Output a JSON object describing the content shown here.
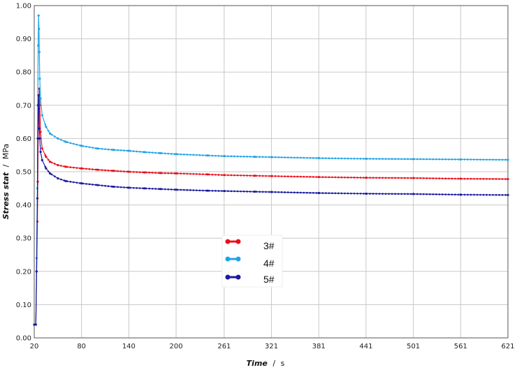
{
  "chart_data": {
    "type": "line",
    "xlabel_name": "Time",
    "xlabel_unit": "s",
    "ylabel_name": "Stress stat",
    "ylabel_unit": "MPa",
    "xlim": [
      20,
      621
    ],
    "ylim": [
      0,
      1.0
    ],
    "x_ticks": [
      20,
      80,
      140,
      200,
      261,
      321,
      381,
      441,
      501,
      561,
      621
    ],
    "y_ticks": [
      "0.00",
      "0.10",
      "0.20",
      "0.30",
      "0.40",
      "0.50",
      "0.60",
      "0.70",
      "0.80",
      "0.90",
      "1.00"
    ],
    "grid": true,
    "legend_placement": "center",
    "series": [
      {
        "name": "3#",
        "color": "#e8101c",
        "x": [
          20,
          22,
          23,
          24,
          24.5,
          25,
          25.5,
          26,
          26.5,
          27,
          28,
          30,
          35,
          40,
          50,
          60,
          80,
          100,
          120,
          140,
          160,
          180,
          200,
          240,
          261,
          300,
          321,
          381,
          441,
          501,
          561,
          621
        ],
        "y": [
          0.04,
          0.04,
          0.2,
          0.35,
          0.47,
          0.6,
          0.68,
          0.72,
          0.75,
          0.7,
          0.62,
          0.57,
          0.545,
          0.53,
          0.52,
          0.515,
          0.51,
          0.506,
          0.503,
          0.5,
          0.498,
          0.496,
          0.495,
          0.492,
          0.49,
          0.488,
          0.487,
          0.484,
          0.482,
          0.481,
          0.479,
          0.478
        ]
      },
      {
        "name": "4#",
        "color": "#1fa3e6",
        "x": [
          20,
          22,
          23,
          24,
          24.5,
          25,
          25.5,
          26,
          26.5,
          27,
          28,
          30,
          35,
          40,
          50,
          60,
          80,
          100,
          120,
          140,
          160,
          180,
          200,
          240,
          261,
          300,
          321,
          381,
          441,
          501,
          561,
          621
        ],
        "y": [
          0.04,
          0.04,
          0.24,
          0.45,
          0.7,
          0.88,
          0.97,
          0.93,
          0.86,
          0.78,
          0.72,
          0.67,
          0.635,
          0.615,
          0.6,
          0.59,
          0.578,
          0.57,
          0.566,
          0.563,
          0.559,
          0.556,
          0.553,
          0.549,
          0.547,
          0.545,
          0.544,
          0.541,
          0.539,
          0.538,
          0.537,
          0.536
        ]
      },
      {
        "name": "5#",
        "color": "#1a1aa0",
        "x": [
          20,
          22,
          23,
          24,
          24.5,
          25,
          25.5,
          26,
          26.5,
          27,
          28,
          30,
          35,
          40,
          50,
          60,
          80,
          100,
          120,
          140,
          160,
          180,
          200,
          240,
          261,
          300,
          321,
          381,
          441,
          501,
          561,
          621
        ],
        "y": [
          0.04,
          0.04,
          0.2,
          0.42,
          0.6,
          0.7,
          0.73,
          0.69,
          0.63,
          0.6,
          0.56,
          0.535,
          0.51,
          0.495,
          0.48,
          0.472,
          0.465,
          0.46,
          0.455,
          0.452,
          0.45,
          0.448,
          0.446,
          0.443,
          0.442,
          0.44,
          0.439,
          0.436,
          0.434,
          0.433,
          0.431,
          0.43
        ]
      }
    ]
  }
}
